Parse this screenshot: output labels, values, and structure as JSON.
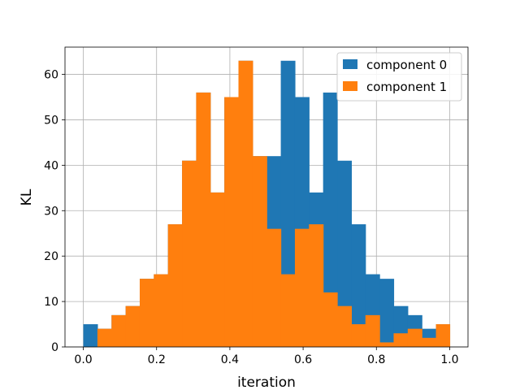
{
  "chart_data": {
    "type": "bar",
    "xlabel": "iteration",
    "ylabel": "KL",
    "xlim": [
      -0.05,
      1.05
    ],
    "ylim": [
      0,
      66
    ],
    "grid": true,
    "legend_position": "top-right",
    "bin_edges": [
      0.0,
      0.0385,
      0.077,
      0.1155,
      0.154,
      0.1925,
      0.231,
      0.2695,
      0.308,
      0.3465,
      0.385,
      0.4235,
      0.462,
      0.5005,
      0.539,
      0.5775,
      0.616,
      0.6545,
      0.693,
      0.7315,
      0.77,
      0.8085,
      0.847,
      0.8855,
      0.924,
      0.9625,
      1.0
    ],
    "xticks": [
      0.0,
      0.2,
      0.4,
      0.6,
      0.8,
      1.0
    ],
    "xtick_labels": [
      "0.0",
      "0.2",
      "0.4",
      "0.6",
      "0.8",
      "1.0"
    ],
    "yticks": [
      0,
      10,
      20,
      30,
      40,
      50,
      60
    ],
    "ytick_labels": [
      "0",
      "10",
      "20",
      "30",
      "40",
      "50",
      "60"
    ],
    "series": [
      {
        "name": "component 0",
        "color": "#1f77b4",
        "values": [
          5,
          4,
          7,
          9,
          15,
          16,
          27,
          41,
          56,
          34,
          55,
          63,
          42,
          42,
          63,
          55,
          34,
          56,
          41,
          27,
          16,
          15,
          9,
          7,
          4,
          5
        ]
      },
      {
        "name": "component 1",
        "color": "#ff7f0e",
        "values": [
          0,
          4,
          7,
          9,
          15,
          16,
          27,
          41,
          56,
          34,
          55,
          63,
          42,
          26,
          16,
          26,
          27,
          12,
          9,
          5,
          7,
          1,
          3,
          4,
          2,
          5
        ]
      }
    ]
  }
}
